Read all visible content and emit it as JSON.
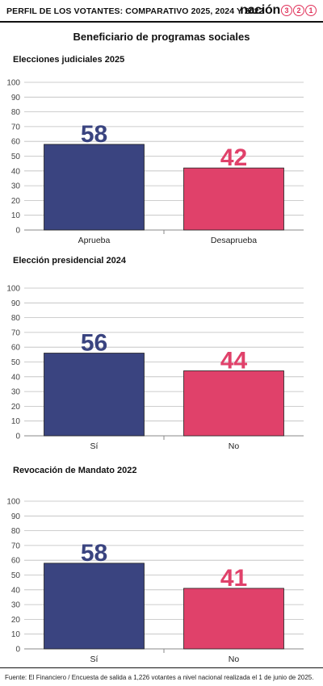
{
  "header": {
    "title": "PERFIL DE LOS VOTANTES: COMPARATIVO 2025, 2024 Y 2022",
    "brand_word": "nación",
    "brand_digits": [
      "3",
      "2",
      "1"
    ]
  },
  "main_title": "Beneficiario de programas sociales",
  "colors": {
    "blue": "#3a4480",
    "pink": "#e0416a",
    "grid": "#bdbdbd"
  },
  "chart_data": [
    {
      "type": "bar",
      "title": "Elecciones judiciales 2025",
      "categories": [
        "Aprueba",
        "Desaprueba"
      ],
      "values": [
        58,
        42
      ],
      "ylim": [
        0,
        100
      ],
      "yticks": [
        "0",
        "10",
        "20",
        "30",
        "40",
        "50",
        "60",
        "70",
        "80",
        "90",
        "100"
      ],
      "grid": true
    },
    {
      "type": "bar",
      "title": "Elección presidencial 2024",
      "categories": [
        "Sí",
        "No"
      ],
      "values": [
        56,
        44
      ],
      "ylim": [
        0,
        100
      ],
      "yticks": [
        "0",
        "10",
        "20",
        "30",
        "40",
        "50",
        "60",
        "70",
        "80",
        "90",
        "100"
      ],
      "grid": true
    },
    {
      "type": "bar",
      "title": "Revocación de Mandato 2022",
      "categories": [
        "Sí",
        "No"
      ],
      "values": [
        58,
        41
      ],
      "ylim": [
        0,
        100
      ],
      "yticks": [
        "0",
        "10",
        "20",
        "30",
        "40",
        "50",
        "60",
        "70",
        "80",
        "90",
        "100"
      ],
      "grid": true
    }
  ],
  "source": "Fuente: El Financiero / Encuesta de salida a 1,226 votantes a nivel nacional realizada el 1 de junio de 2025."
}
